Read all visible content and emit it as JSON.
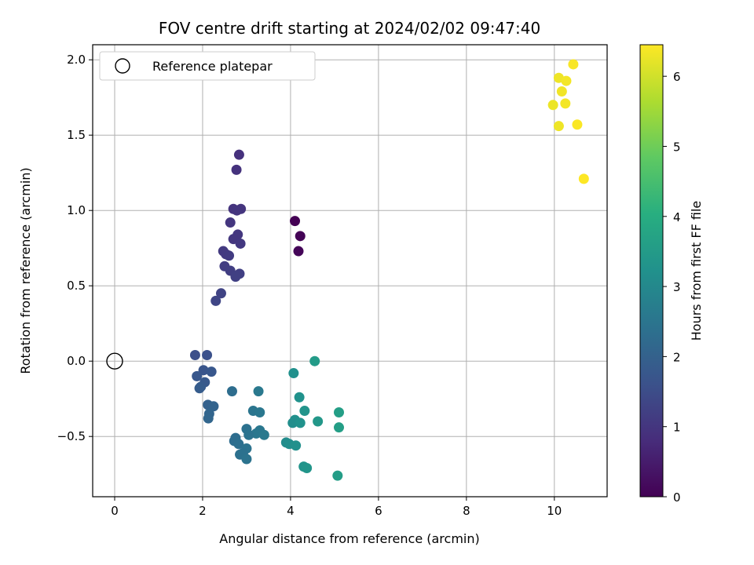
{
  "chart_data": {
    "type": "scatter",
    "title": "FOV centre drift starting at 2024/02/02 09:47:40",
    "xlabel": "Angular distance from reference (arcmin)",
    "ylabel": "Rotation from reference (arcmin)",
    "xlim": [
      -0.5,
      11.2
    ],
    "ylim": [
      -0.9,
      2.1
    ],
    "xticks": [
      0,
      2,
      4,
      6,
      8,
      10
    ],
    "yticks": [
      -0.5,
      0.0,
      0.5,
      1.0,
      1.5,
      2.0
    ],
    "xtick_labels": [
      "0",
      "2",
      "4",
      "6",
      "8",
      "10"
    ],
    "ytick_labels": [
      "−0.5",
      "0.0",
      "0.5",
      "1.0",
      "1.5",
      "2.0"
    ],
    "grid": true,
    "legend": {
      "position": "top-left",
      "entries": [
        "Reference platepar"
      ]
    },
    "reference_point": {
      "x": 0.0,
      "y": 0.0
    },
    "colorbar": {
      "label": "Hours from first FF file",
      "colormap": "viridis",
      "range": [
        0,
        6.45
      ],
      "ticks": [
        0,
        1,
        2,
        3,
        4,
        5,
        6
      ],
      "tick_labels": [
        "0",
        "1",
        "2",
        "3",
        "4",
        "5",
        "6"
      ]
    },
    "points": [
      {
        "x": 4.1,
        "y": 0.93,
        "h": 0.0
      },
      {
        "x": 4.22,
        "y": 0.83,
        "h": 0.05
      },
      {
        "x": 4.18,
        "y": 0.73,
        "h": 0.08
      },
      {
        "x": 2.83,
        "y": 1.37,
        "h": 0.9
      },
      {
        "x": 2.77,
        "y": 1.27,
        "h": 0.92
      },
      {
        "x": 2.7,
        "y": 1.01,
        "h": 0.95
      },
      {
        "x": 2.87,
        "y": 1.01,
        "h": 0.97
      },
      {
        "x": 2.78,
        "y": 1.0,
        "h": 0.98
      },
      {
        "x": 2.63,
        "y": 0.92,
        "h": 1.0
      },
      {
        "x": 2.8,
        "y": 0.84,
        "h": 1.02
      },
      {
        "x": 2.7,
        "y": 0.81,
        "h": 1.03
      },
      {
        "x": 2.86,
        "y": 0.78,
        "h": 1.05
      },
      {
        "x": 2.47,
        "y": 0.73,
        "h": 1.08
      },
      {
        "x": 2.53,
        "y": 0.71,
        "h": 1.1
      },
      {
        "x": 2.6,
        "y": 0.7,
        "h": 1.12
      },
      {
        "x": 2.5,
        "y": 0.63,
        "h": 1.15
      },
      {
        "x": 2.63,
        "y": 0.6,
        "h": 1.18
      },
      {
        "x": 2.84,
        "y": 0.58,
        "h": 1.2
      },
      {
        "x": 2.75,
        "y": 0.56,
        "h": 1.22
      },
      {
        "x": 2.42,
        "y": 0.45,
        "h": 1.28
      },
      {
        "x": 2.3,
        "y": 0.4,
        "h": 1.32
      },
      {
        "x": 1.83,
        "y": 0.04,
        "h": 1.55
      },
      {
        "x": 2.1,
        "y": 0.04,
        "h": 1.6
      },
      {
        "x": 2.02,
        "y": -0.06,
        "h": 1.7
      },
      {
        "x": 2.2,
        "y": -0.07,
        "h": 1.75
      },
      {
        "x": 1.87,
        "y": -0.1,
        "h": 1.75
      },
      {
        "x": 2.05,
        "y": -0.14,
        "h": 1.8
      },
      {
        "x": 1.96,
        "y": -0.17,
        "h": 1.85
      },
      {
        "x": 1.93,
        "y": -0.18,
        "h": 1.87
      },
      {
        "x": 2.67,
        "y": -0.2,
        "h": 2.3
      },
      {
        "x": 2.12,
        "y": -0.29,
        "h": 2.0
      },
      {
        "x": 2.25,
        "y": -0.3,
        "h": 2.05
      },
      {
        "x": 2.15,
        "y": -0.35,
        "h": 2.1
      },
      {
        "x": 2.13,
        "y": -0.38,
        "h": 2.12
      },
      {
        "x": 3.27,
        "y": -0.2,
        "h": 2.6
      },
      {
        "x": 3.15,
        "y": -0.33,
        "h": 2.5
      },
      {
        "x": 3.3,
        "y": -0.34,
        "h": 2.55
      },
      {
        "x": 3.0,
        "y": -0.45,
        "h": 2.4
      },
      {
        "x": 3.3,
        "y": -0.46,
        "h": 2.55
      },
      {
        "x": 3.22,
        "y": -0.48,
        "h": 2.55
      },
      {
        "x": 3.05,
        "y": -0.49,
        "h": 2.45
      },
      {
        "x": 3.4,
        "y": -0.49,
        "h": 2.6
      },
      {
        "x": 2.75,
        "y": -0.51,
        "h": 2.3
      },
      {
        "x": 2.72,
        "y": -0.53,
        "h": 2.3
      },
      {
        "x": 2.82,
        "y": -0.55,
        "h": 2.35
      },
      {
        "x": 3.0,
        "y": -0.58,
        "h": 2.45
      },
      {
        "x": 2.85,
        "y": -0.62,
        "h": 2.38
      },
      {
        "x": 2.92,
        "y": -0.61,
        "h": 2.4
      },
      {
        "x": 3.0,
        "y": -0.65,
        "h": 2.45
      },
      {
        "x": 4.55,
        "y": 0.0,
        "h": 3.5
      },
      {
        "x": 4.07,
        "y": -0.08,
        "h": 3.2
      },
      {
        "x": 4.2,
        "y": -0.24,
        "h": 3.25
      },
      {
        "x": 4.32,
        "y": -0.33,
        "h": 3.3
      },
      {
        "x": 5.1,
        "y": -0.34,
        "h": 3.6
      },
      {
        "x": 4.1,
        "y": -0.39,
        "h": 3.2
      },
      {
        "x": 4.05,
        "y": -0.41,
        "h": 3.15
      },
      {
        "x": 4.22,
        "y": -0.41,
        "h": 3.25
      },
      {
        "x": 4.62,
        "y": -0.4,
        "h": 3.4
      },
      {
        "x": 5.1,
        "y": -0.44,
        "h": 3.6
      },
      {
        "x": 3.9,
        "y": -0.54,
        "h": 3.1
      },
      {
        "x": 3.97,
        "y": -0.55,
        "h": 3.15
      },
      {
        "x": 4.12,
        "y": -0.56,
        "h": 3.2
      },
      {
        "x": 4.3,
        "y": -0.7,
        "h": 3.3
      },
      {
        "x": 4.37,
        "y": -0.71,
        "h": 3.35
      },
      {
        "x": 5.07,
        "y": -0.76,
        "h": 3.55
      },
      {
        "x": 10.43,
        "y": 1.97,
        "h": 6.4
      },
      {
        "x": 10.1,
        "y": 1.88,
        "h": 6.3
      },
      {
        "x": 10.27,
        "y": 1.86,
        "h": 6.35
      },
      {
        "x": 10.17,
        "y": 1.79,
        "h": 6.33
      },
      {
        "x": 10.25,
        "y": 1.71,
        "h": 6.35
      },
      {
        "x": 9.97,
        "y": 1.7,
        "h": 6.28
      },
      {
        "x": 10.52,
        "y": 1.57,
        "h": 6.42
      },
      {
        "x": 10.1,
        "y": 1.56,
        "h": 6.3
      },
      {
        "x": 10.67,
        "y": 1.21,
        "h": 6.45
      }
    ]
  }
}
